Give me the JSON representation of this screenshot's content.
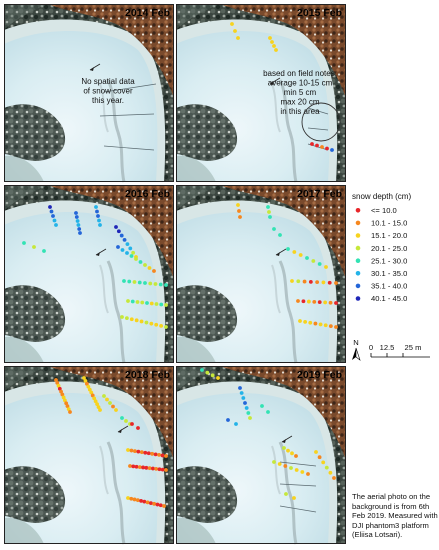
{
  "panels": [
    {
      "year": "2014 Feb",
      "note": [
        "No spatial data",
        "of snow cover",
        "this year."
      ]
    },
    {
      "year": "2015 Feb",
      "note": [
        "based on field notes:",
        "average 10-15 cm",
        "min 5 cm",
        "max 20 cm",
        "in this area"
      ]
    },
    {
      "year": "2016 Feb"
    },
    {
      "year": "2017 Feb"
    },
    {
      "year": "2018 Feb"
    },
    {
      "year": "2019 Feb"
    }
  ],
  "legend": {
    "title": "snow depth (cm)",
    "classes": [
      {
        "label": "<= 10.0",
        "color": "#e8262a"
      },
      {
        "label": "10.1 - 15.0",
        "color": "#f6871f"
      },
      {
        "label": "15.1 - 20.0",
        "color": "#f7d31e"
      },
      {
        "label": "20.1 - 25.0",
        "color": "#c6e83a"
      },
      {
        "label": "25.1 - 30.0",
        "color": "#33e3b4"
      },
      {
        "label": "30.1 - 35.0",
        "color": "#23b3e8"
      },
      {
        "label": "35.1 - 40.0",
        "color": "#2466d8"
      },
      {
        "label": "40.1 - 45.0",
        "color": "#1f27b8"
      }
    ]
  },
  "north_label": "N",
  "scale": {
    "labels": [
      "0",
      "12.5",
      "25 m"
    ]
  },
  "credit": "The aerial photo on the background is from 6th Feb 2019. Measured with DJI phantom3 platform (Eliisa Lotsari)."
}
